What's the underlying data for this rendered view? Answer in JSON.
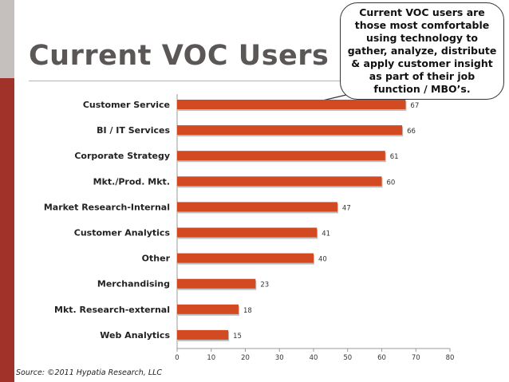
{
  "slide": {
    "title": "Current VOC Users",
    "callout": "Current VOC users are those most comfortable using technology to gather, analyze, distribute & apply customer insight as part of their job function / MBO’s.",
    "source": "Source:  ©2011 Hypatia Research, LLC"
  },
  "colors": {
    "bar": "#d14a21",
    "sidebar": "#a1322a",
    "title": "#5b5756"
  },
  "chart_data": {
    "type": "bar",
    "orientation": "horizontal",
    "categories": [
      "Customer Service",
      "BI / IT Services",
      "Corporate Strategy",
      "Mkt./Prod. Mkt.",
      "Market Research-Internal",
      "Customer Analytics",
      "Other",
      "Merchandising",
      "Mkt. Research-external",
      "Web Analytics"
    ],
    "values": [
      67,
      66,
      61,
      60,
      47,
      41,
      40,
      23,
      18,
      15
    ],
    "xlim": [
      0,
      80
    ],
    "xticks": [
      0,
      10,
      20,
      30,
      40,
      50,
      60,
      70,
      80
    ],
    "grid": false
  }
}
